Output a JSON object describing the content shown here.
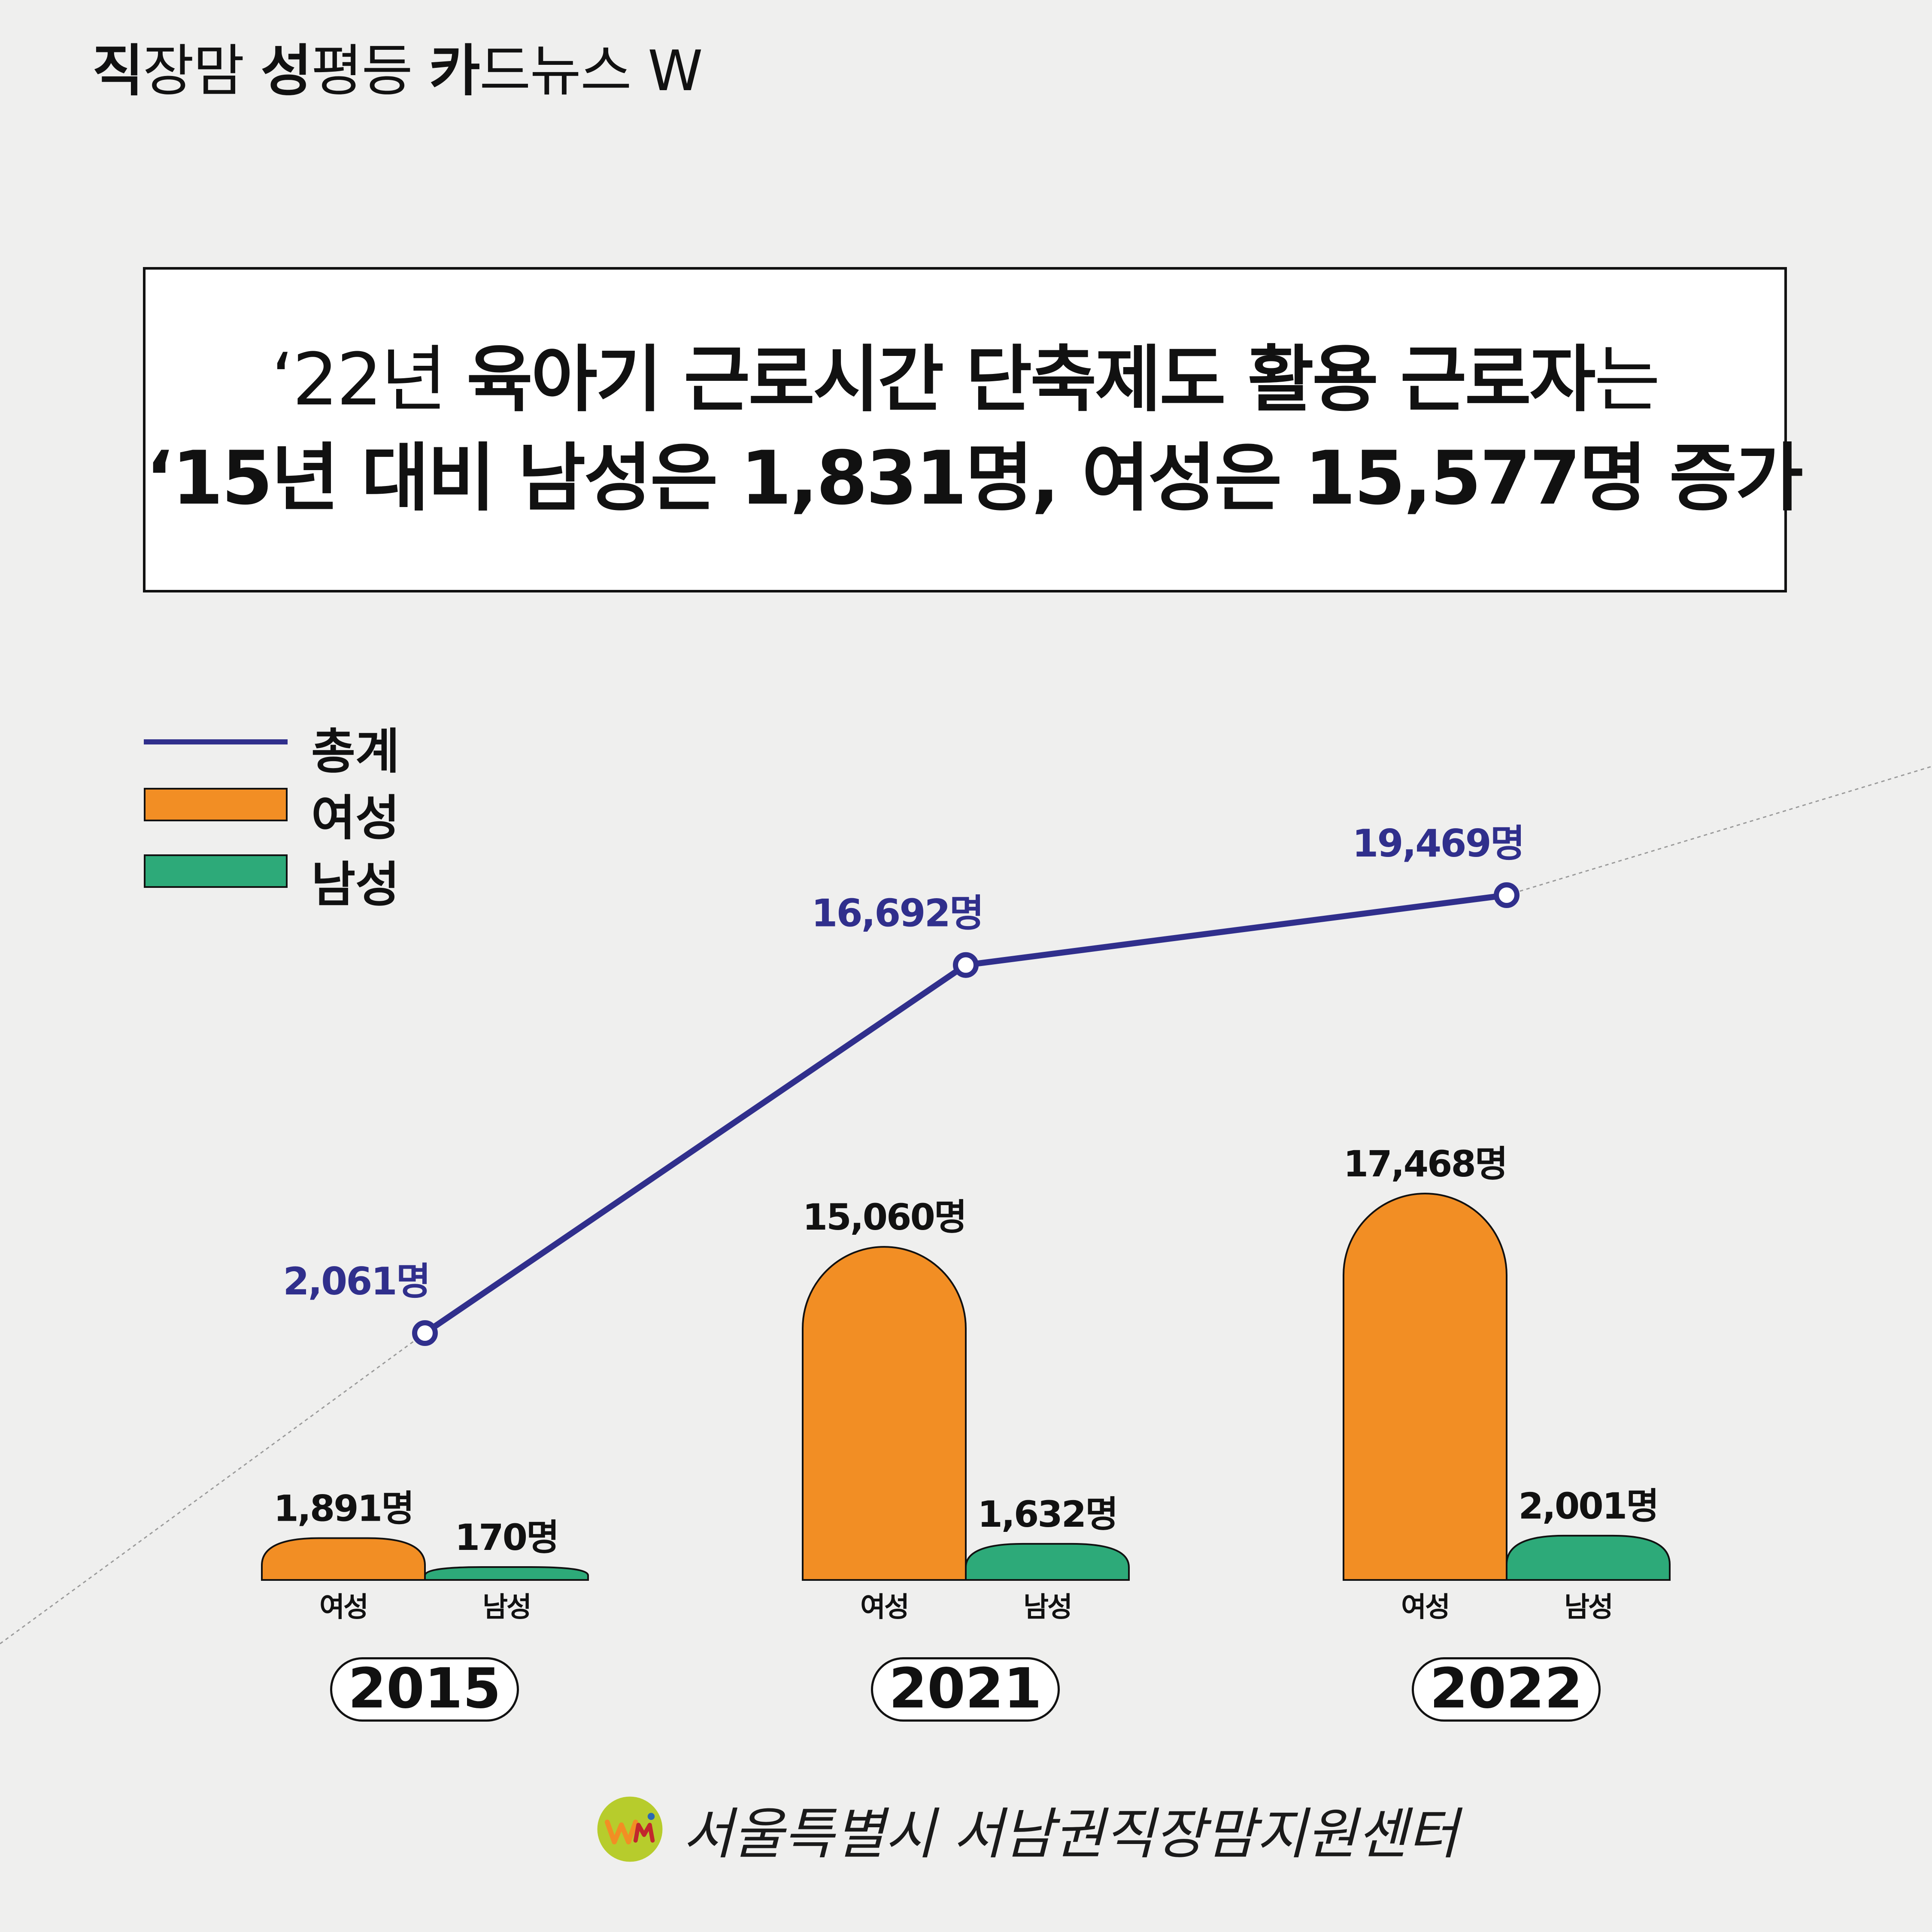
{
  "series_label": {
    "parts": [
      {
        "text": "직",
        "bold": true
      },
      {
        "text": "장맘 ",
        "bold": false
      },
      {
        "text": "성",
        "bold": true
      },
      {
        "text": "평등 ",
        "bold": false
      },
      {
        "text": "카",
        "bold": true
      },
      {
        "text": "드뉴스 W",
        "bold": false
      }
    ]
  },
  "headline": {
    "line1_prefix": "‘22년 ",
    "line1_bold": "육아기 근로시간 단축제도 활용 근로자",
    "line1_suffix": "는",
    "line2": "‘15년 대비 남성은 1,831명, 여성은 15,577명 증가"
  },
  "legend": [
    {
      "label": "총계",
      "kind": "line",
      "color": "#302f8c"
    },
    {
      "label": "여성",
      "kind": "box",
      "color": "#f28e24"
    },
    {
      "label": "남성",
      "kind": "box",
      "color": "#2daa79"
    }
  ],
  "chart_data": {
    "type": "bar",
    "categories": [
      "2015",
      "2021",
      "2022"
    ],
    "bar_category_labels": [
      "여성",
      "남성"
    ],
    "unit": "명",
    "series": [
      {
        "name": "여성",
        "kind": "bar",
        "color": "#f28e24",
        "values": [
          1891,
          15060,
          17468
        ],
        "labels": [
          "1,891명",
          "15,060명",
          "17,468명"
        ]
      },
      {
        "name": "남성",
        "kind": "bar",
        "color": "#2daa79",
        "values": [
          170,
          1632,
          2001
        ],
        "labels": [
          "170명",
          "1,632명",
          "2,001명"
        ]
      },
      {
        "name": "총계",
        "kind": "line",
        "color": "#302f8c",
        "values": [
          2061,
          16692,
          19469
        ],
        "labels": [
          "2,061명",
          "16,692명",
          "19,469명"
        ]
      }
    ],
    "grid": false,
    "legend_position": "top-left"
  },
  "footer": {
    "organization": "서울특별시 서남권직장맘지원센터",
    "logo_icon": "wm-logo-icon"
  }
}
